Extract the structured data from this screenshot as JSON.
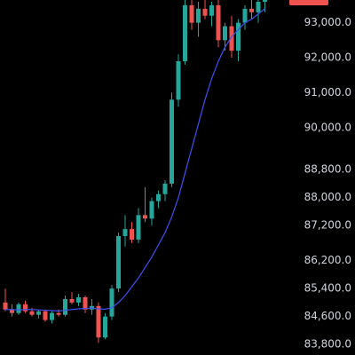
{
  "chart_data": {
    "type": "candlestick",
    "up_color": "#26a69a",
    "down_color": "#ef5350",
    "background": "#000000",
    "ylim": [
      83500,
      93650
    ],
    "yticks": [
      {
        "value": 93000,
        "label": "93,000.0"
      },
      {
        "value": 92000,
        "label": "92,000.0"
      },
      {
        "value": 91000,
        "label": "91,000.0"
      },
      {
        "value": 90000,
        "label": "90,000.0"
      },
      {
        "value": 88800,
        "label": "88,800.0"
      },
      {
        "value": 88000,
        "label": "88,000.0"
      },
      {
        "value": 87200,
        "label": "87,200.0"
      },
      {
        "value": 86200,
        "label": "86,200.0"
      },
      {
        "value": 85400,
        "label": "85,400.0"
      },
      {
        "value": 84600,
        "label": "84,600.0"
      },
      {
        "value": 83800,
        "label": "83,800.0"
      }
    ],
    "open": [
      85000,
      84800,
      84700,
      84950,
      84750,
      84650,
      84750,
      84500,
      84700,
      84650,
      85100,
      85000,
      85150,
      84800,
      84900,
      84000,
      84600,
      85400,
      86900,
      87100,
      86800,
      87500,
      87400,
      87900,
      88100,
      88400,
      90800,
      91900,
      93500,
      93000,
      93400,
      93200,
      93500,
      92500,
      92900,
      92200,
      93000,
      93400,
      93300,
      93600
    ],
    "high": [
      85400,
      84950,
      85000,
      85050,
      84850,
      84800,
      84800,
      84750,
      84800,
      85200,
      85300,
      85250,
      85200,
      85100,
      85000,
      84700,
      85500,
      87000,
      87500,
      87300,
      87700,
      88300,
      88000,
      88200,
      88500,
      91000,
      92100,
      93700,
      93700,
      93600,
      93700,
      93600,
      93700,
      93000,
      93200,
      93100,
      93500,
      93700,
      93700,
      93700
    ],
    "low": [
      84750,
      84600,
      84650,
      84700,
      84600,
      84550,
      84450,
      84400,
      84600,
      84600,
      84950,
      84900,
      84700,
      84650,
      83850,
      83950,
      84500,
      85300,
      86600,
      86700,
      86700,
      87300,
      87200,
      87700,
      87900,
      88300,
      90600,
      91800,
      92800,
      92600,
      93100,
      92900,
      92300,
      92200,
      92000,
      91900,
      92800,
      93100,
      93000,
      93300
    ],
    "close": [
      84800,
      84700,
      84950,
      84750,
      84650,
      84750,
      84500,
      84700,
      84650,
      85100,
      85000,
      85150,
      84800,
      84900,
      84000,
      84600,
      85400,
      86900,
      87100,
      86800,
      87500,
      87400,
      87900,
      88100,
      88400,
      90800,
      91900,
      93500,
      93000,
      93400,
      93200,
      93500,
      92500,
      92900,
      92200,
      93000,
      93400,
      93300,
      93600,
      93650
    ],
    "ma": {
      "color": "#3f51f5",
      "values": [
        84800,
        84800,
        84790,
        84800,
        84800,
        84790,
        84780,
        84770,
        84760,
        84780,
        84800,
        84820,
        84830,
        84840,
        84820,
        84810,
        84850,
        85000,
        85200,
        85450,
        85700,
        86000,
        86300,
        86650,
        87000,
        87450,
        88000,
        88700,
        89400,
        90100,
        90800,
        91400,
        91900,
        92300,
        92600,
        92800,
        93000,
        93100,
        93250,
        93400
      ]
    }
  }
}
